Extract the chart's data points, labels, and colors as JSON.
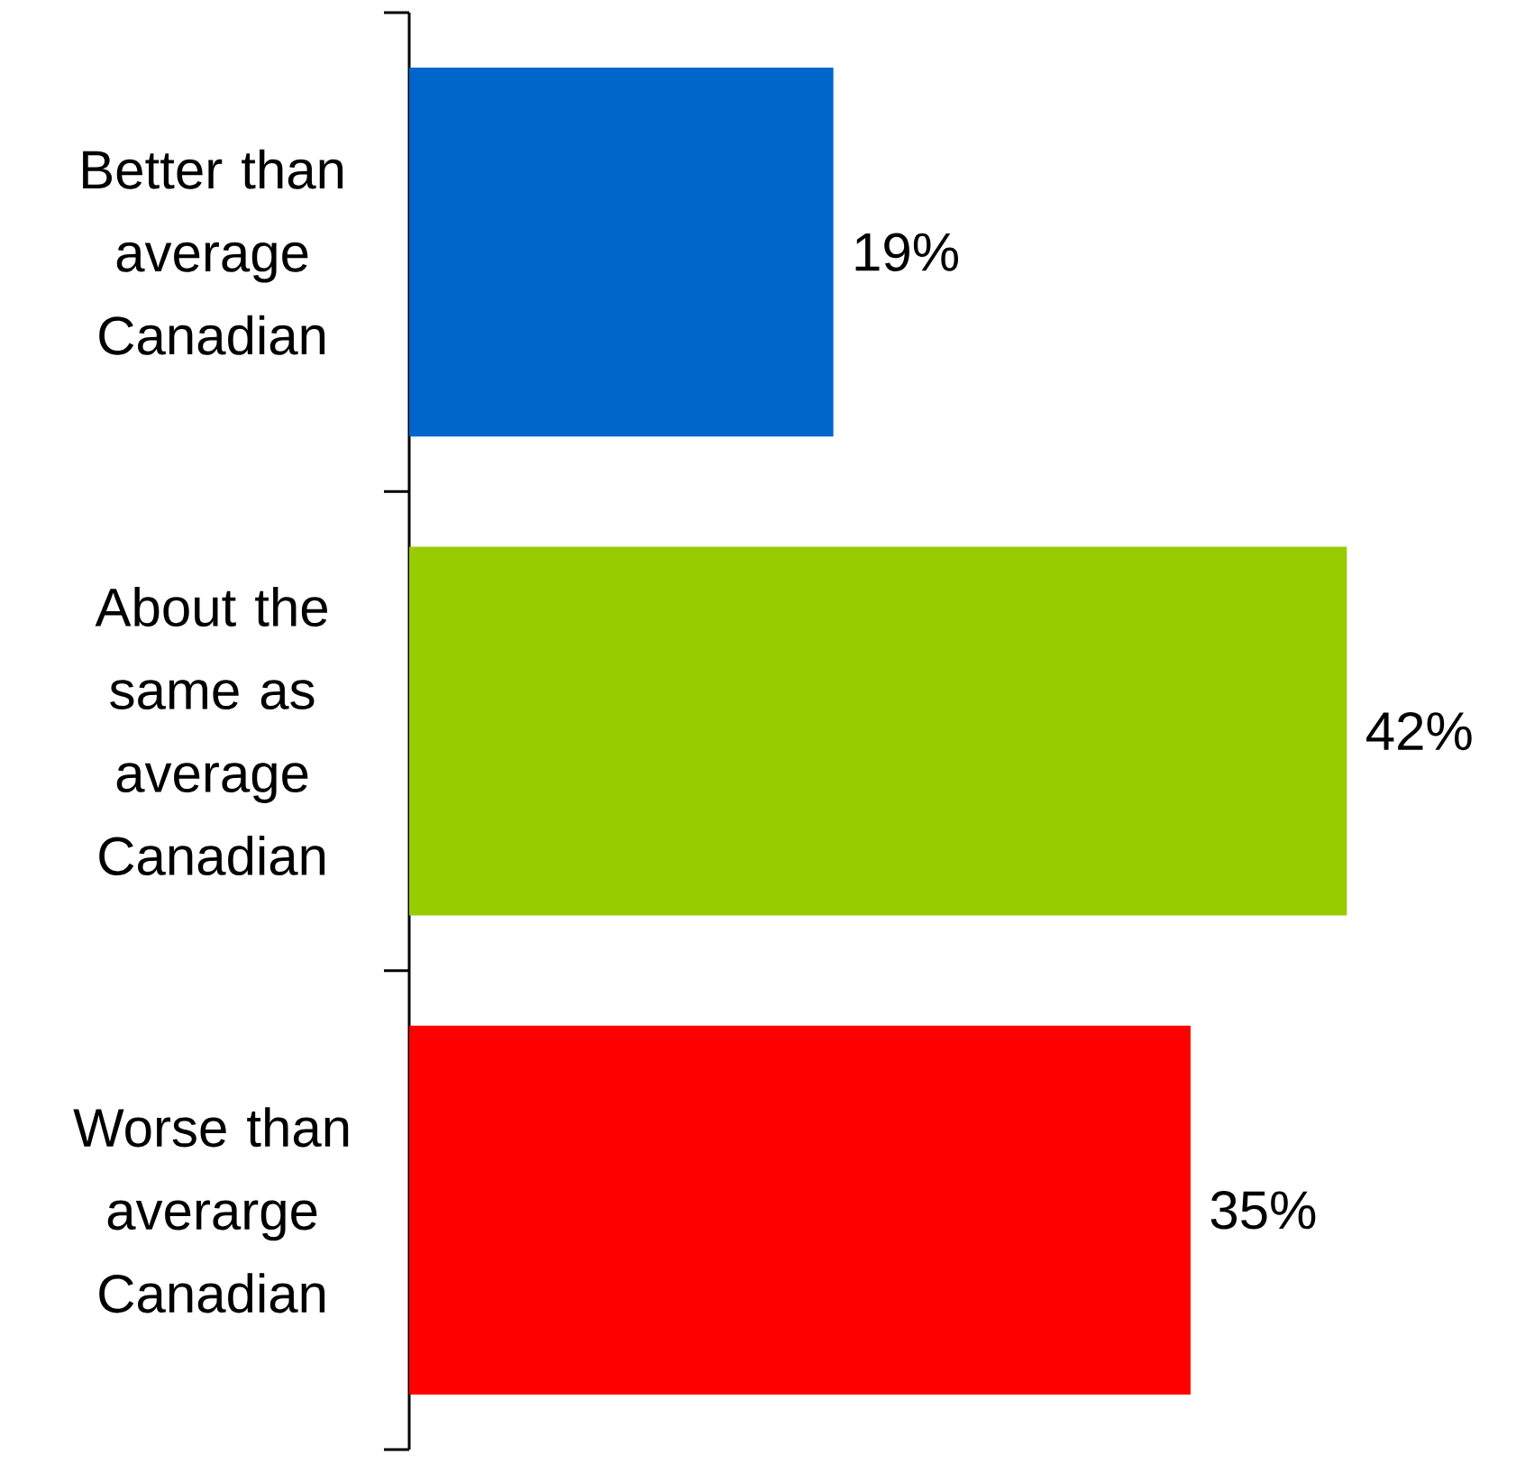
{
  "chart_data": {
    "type": "bar",
    "orientation": "horizontal",
    "categories": [
      "Better than average Canadian",
      "About the same as average Canadian",
      "Worse than averarge Canadian"
    ],
    "values": [
      19,
      42,
      35
    ],
    "colors": [
      "#0066cc",
      "#99cc00",
      "#ff0000"
    ],
    "value_labels": [
      "19%",
      "42%",
      "35%"
    ]
  }
}
